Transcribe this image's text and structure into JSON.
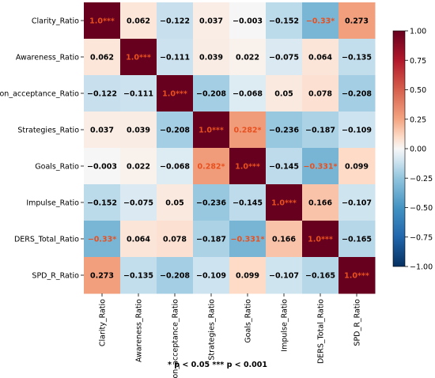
{
  "chart_data": {
    "type": "heatmap",
    "title": "",
    "xlabel": "",
    "ylabel": "",
    "labels": [
      "Clarity_Ratio",
      "Awareness_Ratio",
      "Non_acceptance_Ratio",
      "Strategies_Ratio",
      "Goals_Ratio",
      "Impulse_Ratio",
      "DERS_Total_Ratio",
      "SPD_R_Ratio"
    ],
    "cells": [
      [
        "1.0***",
        "0.062",
        "−0.122",
        "0.037",
        "−0.003",
        "−0.152",
        "−0.33*",
        "0.273"
      ],
      [
        "0.062",
        "1.0***",
        "−0.111",
        "0.039",
        "0.022",
        "−0.075",
        "0.064",
        "−0.135"
      ],
      [
        "−0.122",
        "−0.111",
        "1.0***",
        "−0.208",
        "−0.068",
        "0.05",
        "0.078",
        "−0.208"
      ],
      [
        "0.037",
        "0.039",
        "−0.208",
        "1.0***",
        "0.282*",
        "−0.236",
        "−0.187",
        "−0.109"
      ],
      [
        "−0.003",
        "0.022",
        "−0.068",
        "0.282*",
        "1.0***",
        "−0.145",
        "−0.331*",
        "0.099"
      ],
      [
        "−0.152",
        "−0.075",
        "0.05",
        "−0.236",
        "−0.145",
        "1.0***",
        "0.166",
        "−0.107"
      ],
      [
        "−0.33*",
        "0.064",
        "0.078",
        "−0.187",
        "−0.331*",
        "0.166",
        "1.0***",
        "−0.165"
      ],
      [
        "0.273",
        "−0.135",
        "−0.208",
        "−0.109",
        "0.099",
        "−0.107",
        "−0.165",
        "1.0***"
      ]
    ],
    "values": [
      [
        1.0,
        0.062,
        -0.122,
        0.037,
        -0.003,
        -0.152,
        -0.33,
        0.273
      ],
      [
        0.062,
        1.0,
        -0.111,
        0.039,
        0.022,
        -0.075,
        0.064,
        -0.135
      ],
      [
        -0.122,
        -0.111,
        1.0,
        -0.208,
        -0.068,
        0.05,
        0.078,
        -0.208
      ],
      [
        0.037,
        0.039,
        -0.208,
        1.0,
        0.282,
        -0.236,
        -0.187,
        -0.109
      ],
      [
        -0.003,
        0.022,
        -0.068,
        0.282,
        1.0,
        -0.145,
        -0.331,
        0.099
      ],
      [
        -0.152,
        -0.075,
        0.05,
        -0.236,
        -0.145,
        1.0,
        0.166,
        -0.107
      ],
      [
        -0.33,
        0.064,
        0.078,
        -0.187,
        -0.331,
        0.166,
        1.0,
        -0.165
      ],
      [
        0.273,
        -0.135,
        -0.208,
        -0.109,
        0.099,
        -0.107,
        -0.165,
        1.0
      ]
    ],
    "significant": [
      [
        true,
        false,
        false,
        false,
        false,
        false,
        true,
        false
      ],
      [
        false,
        true,
        false,
        false,
        false,
        false,
        false,
        false
      ],
      [
        false,
        false,
        true,
        false,
        false,
        false,
        false,
        false
      ],
      [
        false,
        false,
        false,
        true,
        true,
        false,
        false,
        false
      ],
      [
        false,
        false,
        false,
        true,
        true,
        false,
        true,
        false
      ],
      [
        false,
        false,
        false,
        false,
        false,
        true,
        false,
        false
      ],
      [
        true,
        false,
        false,
        false,
        true,
        false,
        true,
        false
      ],
      [
        false,
        false,
        false,
        false,
        false,
        false,
        false,
        true
      ]
    ],
    "vmin": -1.0,
    "vmax": 1.0,
    "colormap": "RdBu_r",
    "colorbar_ticks": [
      "1.00",
      "0.75",
      "0.50",
      "0.25",
      "0.00",
      "−0.25",
      "−0.50",
      "−0.75",
      "−1.00"
    ],
    "colorbar_values": [
      1.0,
      0.75,
      0.5,
      0.25,
      0.0,
      -0.25,
      -0.5,
      -0.75,
      -1.0
    ],
    "significant_text_color": "#e8501f",
    "normal_text_color": "#000000",
    "footnote": "* p < 0.05   *** p < 0.001"
  }
}
